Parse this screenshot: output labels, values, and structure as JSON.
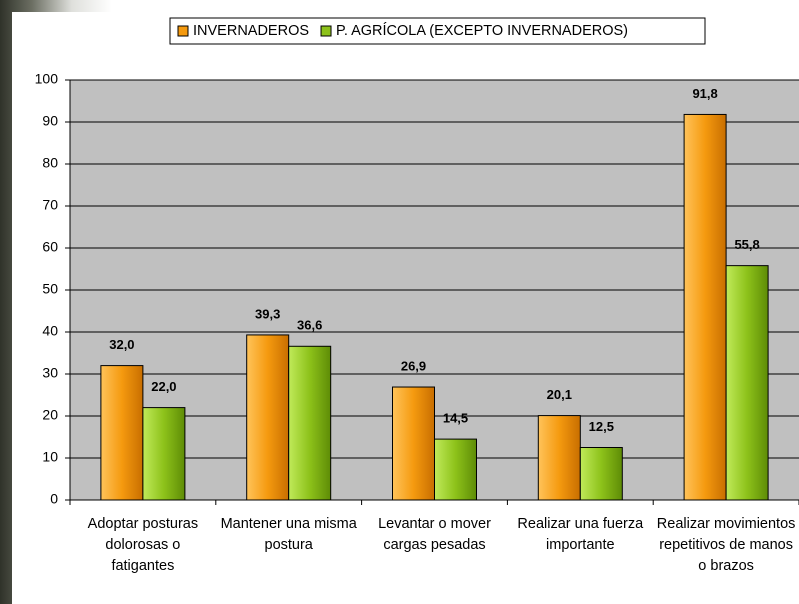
{
  "chart_data": {
    "type": "bar",
    "categories": [
      "Adoptar posturas dolorosas o fatigantes",
      "Mantener una misma postura",
      "Levantar o mover cargas pesadas",
      "Realizar una fuerza importante",
      "Realizar movimientos repetitivos de manos o brazos"
    ],
    "series": [
      {
        "name": "INVERNADEROS",
        "color": "#f59a0f",
        "values": [
          32.0,
          39.3,
          26.9,
          20.1,
          91.8
        ],
        "value_labels": [
          "32,0",
          "39,3",
          "26,9",
          "20,1",
          "91,8"
        ]
      },
      {
        "name": "P. AGRÍCOLA (EXCEPTO INVERNADEROS)",
        "color": "#8dc21a",
        "values": [
          22.0,
          36.6,
          14.5,
          12.5,
          55.8
        ],
        "value_labels": [
          "22,0",
          "36,6",
          "14,5",
          "12,5",
          "55,8"
        ]
      }
    ],
    "ylim": [
      0,
      100
    ],
    "yticks": [
      0,
      10,
      20,
      30,
      40,
      50,
      60,
      70,
      80,
      90,
      100
    ],
    "grid": true,
    "legend": "top"
  }
}
